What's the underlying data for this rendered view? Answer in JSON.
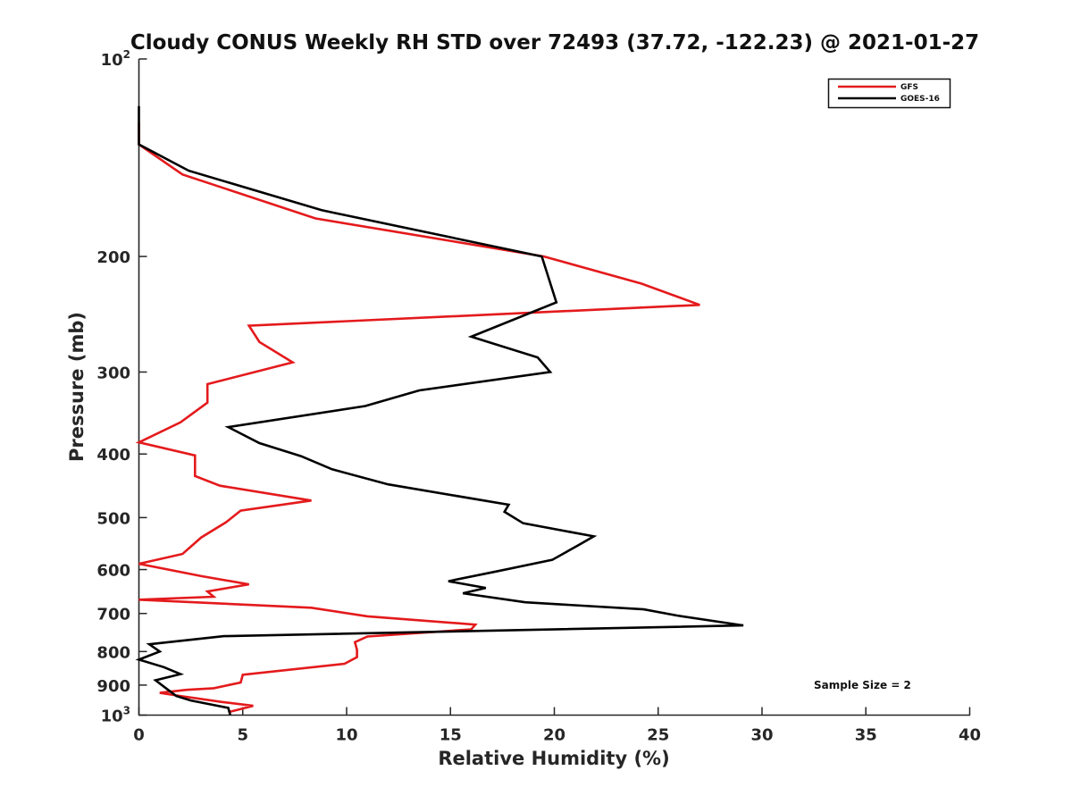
{
  "chart_data": {
    "type": "line",
    "title": "Cloudy CONUS Weekly RH STD over 72493 (37.72, -122.23) @ 2021-01-27",
    "xlabel": "Relative Humidity (%)",
    "ylabel": "Pressure (mb)",
    "xlim": [
      0,
      40
    ],
    "ylim": [
      100,
      1000
    ],
    "y_scale": "log",
    "y_reversed": true,
    "x_ticks": [
      0,
      5,
      10,
      15,
      20,
      25,
      30,
      35,
      40
    ],
    "y_ticks": [
      {
        "value": 100,
        "base": "10",
        "exp": "2"
      },
      {
        "value": 200,
        "label": "200"
      },
      {
        "value": 300,
        "label": "300"
      },
      {
        "value": 400,
        "label": "400"
      },
      {
        "value": 500,
        "label": "500"
      },
      {
        "value": 600,
        "label": "600"
      },
      {
        "value": 700,
        "label": "700"
      },
      {
        "value": 800,
        "label": "800"
      },
      {
        "value": 900,
        "label": "900"
      },
      {
        "value": 1000,
        "base": "10",
        "exp": "3"
      }
    ],
    "grid": false,
    "legend": "top-right",
    "annotation": "Sample Size = 2",
    "series": [
      {
        "name": "GFS",
        "color": "#e41a1c",
        "points": [
          [
            0.0,
            125
          ],
          [
            0.0,
            135
          ],
          [
            2.1,
            150
          ],
          [
            8.5,
            175
          ],
          [
            19.5,
            200
          ],
          [
            24.2,
            220
          ],
          [
            27.0,
            237
          ],
          [
            5.3,
            255
          ],
          [
            5.8,
            270
          ],
          [
            7.4,
            290
          ],
          [
            3.3,
            313
          ],
          [
            3.3,
            334
          ],
          [
            2.0,
            358
          ],
          [
            0.0,
            384
          ],
          [
            2.7,
            402
          ],
          [
            2.7,
            432
          ],
          [
            3.9,
            447
          ],
          [
            8.3,
            471
          ],
          [
            4.9,
            488
          ],
          [
            4.2,
            508
          ],
          [
            3.0,
            536
          ],
          [
            2.1,
            568
          ],
          [
            0.0,
            588
          ],
          [
            3.0,
            614
          ],
          [
            5.3,
            632
          ],
          [
            3.3,
            648
          ],
          [
            3.6,
            660
          ],
          [
            0.0,
            667
          ],
          [
            8.3,
            686
          ],
          [
            11.0,
            707
          ],
          [
            16.2,
            728
          ],
          [
            16.0,
            740
          ],
          [
            11.0,
            759
          ],
          [
            10.4,
            774
          ],
          [
            10.5,
            795
          ],
          [
            10.5,
            816
          ],
          [
            9.9,
            835
          ],
          [
            5.0,
            868
          ],
          [
            4.9,
            892
          ],
          [
            3.6,
            910
          ],
          [
            2.3,
            915
          ],
          [
            1.0,
            925
          ],
          [
            2.0,
            935
          ],
          [
            4.0,
            955
          ],
          [
            5.5,
            968
          ],
          [
            4.3,
            990
          ]
        ]
      },
      {
        "name": "GOES-16",
        "color": "#000000",
        "points": [
          [
            0.0,
            118
          ],
          [
            0.0,
            135
          ],
          [
            2.4,
            148
          ],
          [
            8.8,
            170
          ],
          [
            19.4,
            200
          ],
          [
            20.1,
            235
          ],
          [
            16.0,
            265
          ],
          [
            19.2,
            285
          ],
          [
            19.8,
            300
          ],
          [
            13.5,
            320
          ],
          [
            10.9,
            338
          ],
          [
            4.3,
            364
          ],
          [
            5.8,
            385
          ],
          [
            7.8,
            403
          ],
          [
            9.3,
            422
          ],
          [
            12.0,
            445
          ],
          [
            17.8,
            478
          ],
          [
            17.6,
            490
          ],
          [
            18.5,
            510
          ],
          [
            21.9,
            534
          ],
          [
            21.2,
            550
          ],
          [
            19.9,
            580
          ],
          [
            17.1,
            605
          ],
          [
            14.9,
            625
          ],
          [
            16.7,
            640
          ],
          [
            15.6,
            652
          ],
          [
            18.6,
            673
          ],
          [
            24.3,
            690
          ],
          [
            25.9,
            705
          ],
          [
            29.1,
            730
          ],
          [
            4.1,
            758
          ],
          [
            0.5,
            780
          ],
          [
            1.0,
            800
          ],
          [
            0.0,
            823
          ],
          [
            1.2,
            845
          ],
          [
            2.0,
            866
          ],
          [
            0.8,
            885
          ],
          [
            1.4,
            915
          ],
          [
            1.8,
            935
          ],
          [
            2.5,
            950
          ],
          [
            4.3,
            975
          ],
          [
            4.4,
            1000
          ]
        ]
      }
    ]
  }
}
